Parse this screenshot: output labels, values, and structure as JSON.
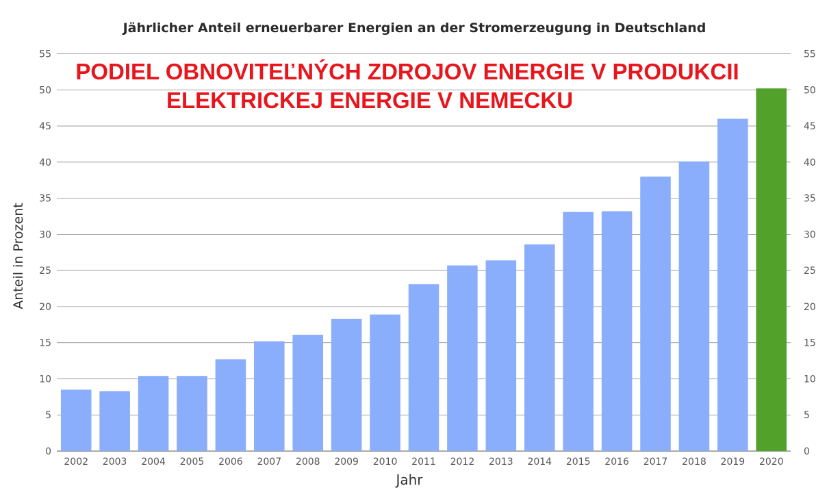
{
  "chart_data": {
    "type": "bar",
    "title": "Jährlicher Anteil erneuerbarer Energien an der Stromerzeugung in Deutschland",
    "overlay_text": [
      "PODIEL OBNOVITEĽNÝCH ZDROJOV ENERGIE V PRODUKCII",
      "ELEKTRICKEJ ENERGIE V NEMECKU"
    ],
    "xlabel": "Jahr",
    "ylabel": "Anteil in Prozent",
    "ylim": [
      0,
      55
    ],
    "yticks": [
      "0",
      "5",
      "10",
      "15",
      "20",
      "25",
      "30",
      "35",
      "40",
      "45",
      "50",
      "55"
    ],
    "categories": [
      "2002",
      "2003",
      "2004",
      "2005",
      "2006",
      "2007",
      "2008",
      "2009",
      "2010",
      "2011",
      "2012",
      "2013",
      "2014",
      "2015",
      "2016",
      "2017",
      "2018",
      "2019",
      "2020"
    ],
    "values": [
      8.5,
      8.3,
      10.4,
      10.4,
      12.7,
      15.2,
      16.1,
      18.3,
      18.9,
      23.1,
      25.7,
      26.4,
      28.6,
      33.1,
      33.2,
      38.0,
      40.1,
      46.0,
      50.2
    ],
    "grid": true,
    "colors": {
      "default": "#8aaefc",
      "highlight": "#52a12b",
      "grid": "#8c8c8c",
      "axis_text": "#555555",
      "overlay": "#e8161c"
    },
    "highlight_category": "2020"
  }
}
